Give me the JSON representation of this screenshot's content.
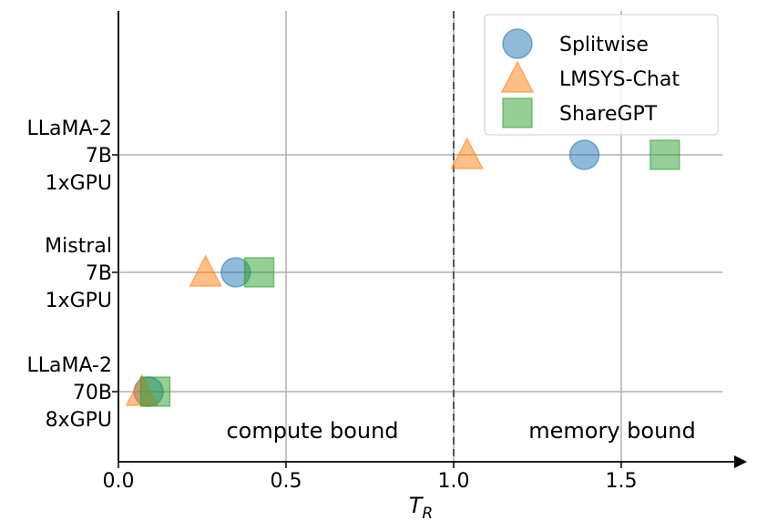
{
  "chart_data": {
    "type": "scatter",
    "xlabel": "T",
    "xlabel_subscript": "R",
    "xlim": [
      0.0,
      1.8
    ],
    "x_ticks": [
      0.0,
      0.5,
      1.0,
      1.5
    ],
    "x_tick_labels": [
      "0.0",
      "0.5",
      "1.0",
      "1.5"
    ],
    "categories": [
      [
        "LLaMA-2",
        "7B",
        "1xGPU"
      ],
      [
        "Mistral",
        "7B",
        "1xGPU"
      ],
      [
        "LLaMA-2",
        "70B",
        "8xGPU"
      ]
    ],
    "grid": true,
    "threshold_x": 1.0,
    "region_labels": [
      "compute bound",
      "memory bound"
    ],
    "legend_position": "top-right",
    "series": [
      {
        "name": "Splitwise",
        "marker": "circle",
        "color": "#1f77b4",
        "values": [
          1.39,
          0.35,
          0.09
        ]
      },
      {
        "name": "LMSYS-Chat",
        "marker": "triangle",
        "color": "#ff7f0e",
        "values": [
          1.04,
          0.26,
          0.07
        ]
      },
      {
        "name": "ShareGPT",
        "marker": "square",
        "color": "#2ca02c",
        "values": [
          1.63,
          0.42,
          0.11
        ]
      }
    ]
  }
}
